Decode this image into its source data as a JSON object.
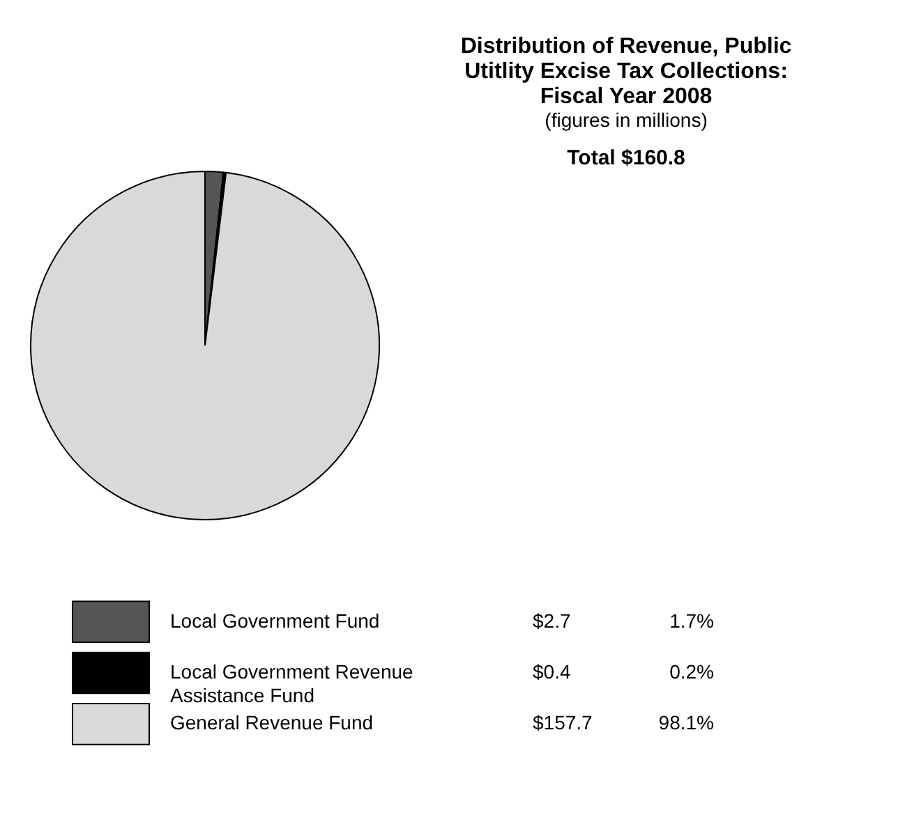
{
  "chart_data": {
    "type": "pie",
    "title": "Distribution of Revenue, Public Utitlity Excise Tax Collections: Fiscal Year 2008",
    "subtitle": "(figures in millions)",
    "categories": [
      "Local Government Fund",
      "Local Government Revenue Assistance Fund",
      "General Revenue Fund"
    ],
    "values": [
      2.7,
      0.4,
      157.7
    ],
    "colors": [
      "#555555",
      "#000000",
      "#d9d9d9"
    ],
    "value_labels": [
      "$2.7",
      "$0.4",
      "$157.7"
    ],
    "annotations": [
      "Total $160.8",
      "1.7%",
      "0.2%",
      "98.1%"
    ],
    "legend": "bottom"
  }
}
